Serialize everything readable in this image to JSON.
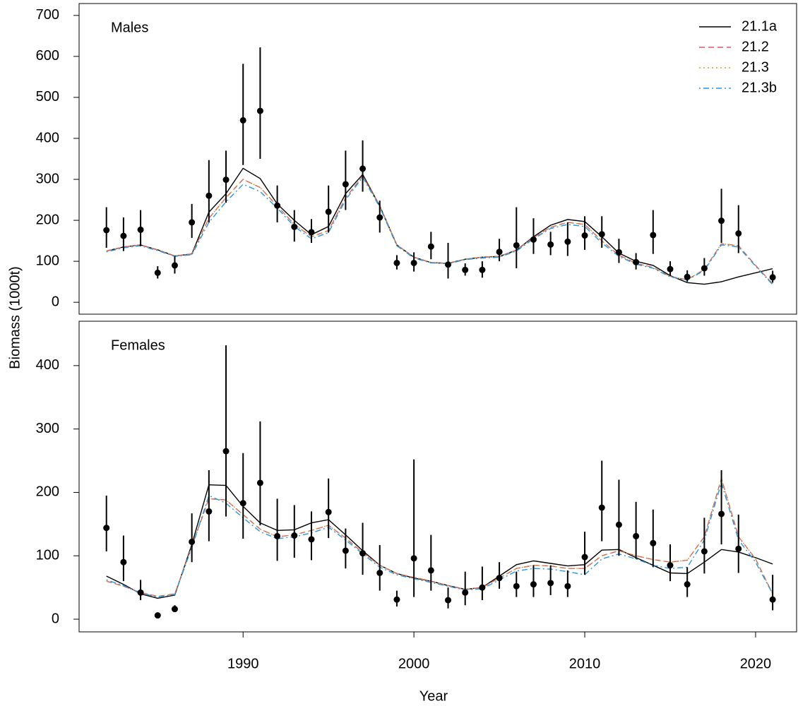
{
  "chart_data": [
    {
      "type": "line",
      "title": "Males",
      "ylabel": "Biomass (1000t)",
      "x": [
        1982,
        1983,
        1984,
        1985,
        1986,
        1987,
        1988,
        1989,
        1990,
        1991,
        1992,
        1993,
        1994,
        1995,
        1996,
        1997,
        1998,
        1999,
        2000,
        2001,
        2002,
        2003,
        2004,
        2005,
        2006,
        2007,
        2008,
        2009,
        2010,
        2011,
        2012,
        2013,
        2014,
        2015,
        2016,
        2017,
        2018,
        2019,
        2020,
        2021
      ],
      "xlim": [
        1980.4,
        2022.4
      ],
      "ylim": [
        -29,
        729
      ],
      "yticks": [
        0,
        100,
        200,
        300,
        400,
        500,
        600,
        700
      ],
      "legend": "topright",
      "observed": {
        "color": "#000000",
        "values": [
          176,
          162,
          177,
          72,
          90,
          195,
          260,
          299,
          444,
          467,
          236,
          184,
          171,
          221,
          288,
          326,
          207,
          96,
          96,
          136,
          92,
          79,
          79,
          123,
          139,
          153,
          141,
          148,
          163,
          166,
          122,
          98,
          164,
          81,
          62,
          83,
          199,
          168,
          null,
          61
        ],
        "lower": [
          133,
          125,
          137,
          58,
          70,
          157,
          195,
          243,
          335,
          350,
          195,
          148,
          145,
          170,
          225,
          270,
          170,
          80,
          75,
          105,
          58,
          65,
          60,
          100,
          83,
          118,
          115,
          113,
          128,
          133,
          96,
          80,
          118,
          65,
          50,
          65,
          145,
          120,
          null,
          48
        ],
        "upper": [
          232,
          207,
          225,
          88,
          112,
          240,
          347,
          370,
          582,
          622,
          285,
          225,
          203,
          285,
          370,
          395,
          248,
          115,
          122,
          172,
          145,
          95,
          100,
          155,
          232,
          205,
          172,
          195,
          210,
          210,
          155,
          120,
          225,
          100,
          78,
          108,
          277,
          237,
          null,
          77
        ]
      },
      "series": [
        {
          "name": "21.1a",
          "color": "#000000",
          "dash": "solid",
          "values": [
            125,
            135,
            140,
            128,
            113,
            118,
            220,
            265,
            327,
            302,
            240,
            200,
            165,
            185,
            265,
            312,
            235,
            140,
            110,
            97,
            95,
            105,
            110,
            112,
            127,
            160,
            188,
            202,
            197,
            160,
            120,
            100,
            90,
            65,
            48,
            44,
            50,
            62,
            72,
            82
          ]
        },
        {
          "name": "21.2",
          "color": "#DF536B",
          "dash": "dashed",
          "values": [
            125,
            135,
            140,
            128,
            113,
            118,
            205,
            255,
            300,
            280,
            235,
            190,
            160,
            175,
            255,
            308,
            235,
            140,
            110,
            97,
            95,
            105,
            110,
            112,
            127,
            158,
            183,
            195,
            190,
            150,
            115,
            95,
            85,
            63,
            55,
            80,
            143,
            138,
            90,
            45
          ]
        },
        {
          "name": "21.3",
          "color": "#C9A227",
          "dash": "dotted",
          "values": [
            125,
            135,
            140,
            128,
            113,
            118,
            205,
            255,
            300,
            280,
            235,
            190,
            160,
            175,
            255,
            308,
            235,
            140,
            110,
            97,
            95,
            105,
            110,
            112,
            127,
            158,
            183,
            195,
            190,
            150,
            115,
            95,
            85,
            63,
            55,
            80,
            143,
            138,
            90,
            45
          ]
        },
        {
          "name": "21.3b",
          "color": "#2297E6",
          "dash": "dotdash",
          "values": [
            123,
            133,
            138,
            126,
            112,
            116,
            195,
            245,
            288,
            270,
            230,
            185,
            155,
            170,
            250,
            305,
            232,
            138,
            108,
            96,
            94,
            104,
            108,
            110,
            125,
            155,
            180,
            190,
            185,
            145,
            112,
            93,
            83,
            62,
            54,
            78,
            140,
            135,
            88,
            43
          ]
        }
      ]
    },
    {
      "type": "line",
      "title": "Females",
      "xlabel": "Year",
      "x": [
        1982,
        1983,
        1984,
        1985,
        1986,
        1987,
        1988,
        1989,
        1990,
        1991,
        1992,
        1993,
        1994,
        1995,
        1996,
        1997,
        1998,
        1999,
        2000,
        2001,
        2002,
        2003,
        2004,
        2005,
        2006,
        2007,
        2008,
        2009,
        2010,
        2011,
        2012,
        2013,
        2014,
        2015,
        2016,
        2017,
        2018,
        2019,
        2020,
        2021
      ],
      "xlim": [
        1980.4,
        2022.4
      ],
      "xticks": [
        1990,
        2000,
        2010,
        2020
      ],
      "ylim": [
        -20,
        470
      ],
      "yticks": [
        0,
        100,
        200,
        300,
        400
      ],
      "observed": {
        "color": "#000000",
        "values": [
          144,
          90,
          42,
          6,
          16,
          122,
          170,
          265,
          183,
          215,
          131,
          132,
          126,
          169,
          108,
          104,
          73,
          31,
          96,
          77,
          30,
          42,
          50,
          65,
          52,
          55,
          57,
          52,
          98,
          176,
          149,
          131,
          120,
          85,
          55,
          107,
          166,
          111,
          null,
          31
        ],
        "lower": [
          107,
          60,
          30,
          4,
          12,
          90,
          123,
          162,
          127,
          148,
          92,
          97,
          93,
          128,
          80,
          70,
          45,
          20,
          35,
          45,
          17,
          22,
          30,
          48,
          35,
          35,
          38,
          35,
          70,
          123,
          100,
          95,
          82,
          60,
          35,
          72,
          118,
          73,
          null,
          14
        ],
        "upper": [
          195,
          132,
          62,
          8,
          22,
          167,
          235,
          432,
          262,
          312,
          190,
          180,
          170,
          222,
          143,
          152,
          117,
          45,
          252,
          133,
          50,
          75,
          83,
          90,
          75,
          85,
          85,
          77,
          138,
          250,
          220,
          185,
          173,
          118,
          82,
          160,
          235,
          165,
          null,
          70
        ]
      },
      "series": [
        {
          "color": "#000000",
          "dash": "solid",
          "values": [
            68,
            55,
            40,
            33,
            38,
            118,
            212,
            211,
            178,
            152,
            140,
            141,
            152,
            157,
            133,
            108,
            85,
            72,
            65,
            60,
            53,
            47,
            50,
            68,
            86,
            92,
            88,
            84,
            86,
            109,
            110,
            97,
            85,
            73,
            72,
            90,
            110,
            106,
            97,
            87
          ]
        },
        {
          "color": "#DF536B",
          "dash": "dashed",
          "values": [
            60,
            52,
            42,
            36,
            40,
            115,
            190,
            188,
            165,
            142,
            130,
            133,
            140,
            148,
            128,
            105,
            85,
            72,
            66,
            60,
            53,
            47,
            50,
            65,
            80,
            85,
            84,
            80,
            80,
            100,
            108,
            100,
            94,
            90,
            93,
            130,
            222,
            130,
            95,
            40
          ]
        },
        {
          "color": "#C9A227",
          "dash": "dotted",
          "values": [
            60,
            52,
            42,
            36,
            40,
            115,
            190,
            188,
            165,
            142,
            130,
            133,
            140,
            148,
            128,
            105,
            85,
            72,
            66,
            60,
            53,
            47,
            50,
            65,
            80,
            85,
            84,
            80,
            80,
            100,
            108,
            100,
            94,
            90,
            93,
            130,
            222,
            130,
            95,
            40
          ]
        },
        {
          "color": "#2297E6",
          "dash": "dotdash",
          "values": [
            62,
            53,
            41,
            35,
            39,
            113,
            195,
            183,
            160,
            138,
            127,
            130,
            136,
            145,
            125,
            103,
            82,
            70,
            64,
            58,
            52,
            46,
            48,
            62,
            76,
            80,
            79,
            75,
            70,
            95,
            103,
            95,
            85,
            80,
            82,
            125,
            215,
            125,
            90,
            40
          ]
        }
      ]
    }
  ]
}
